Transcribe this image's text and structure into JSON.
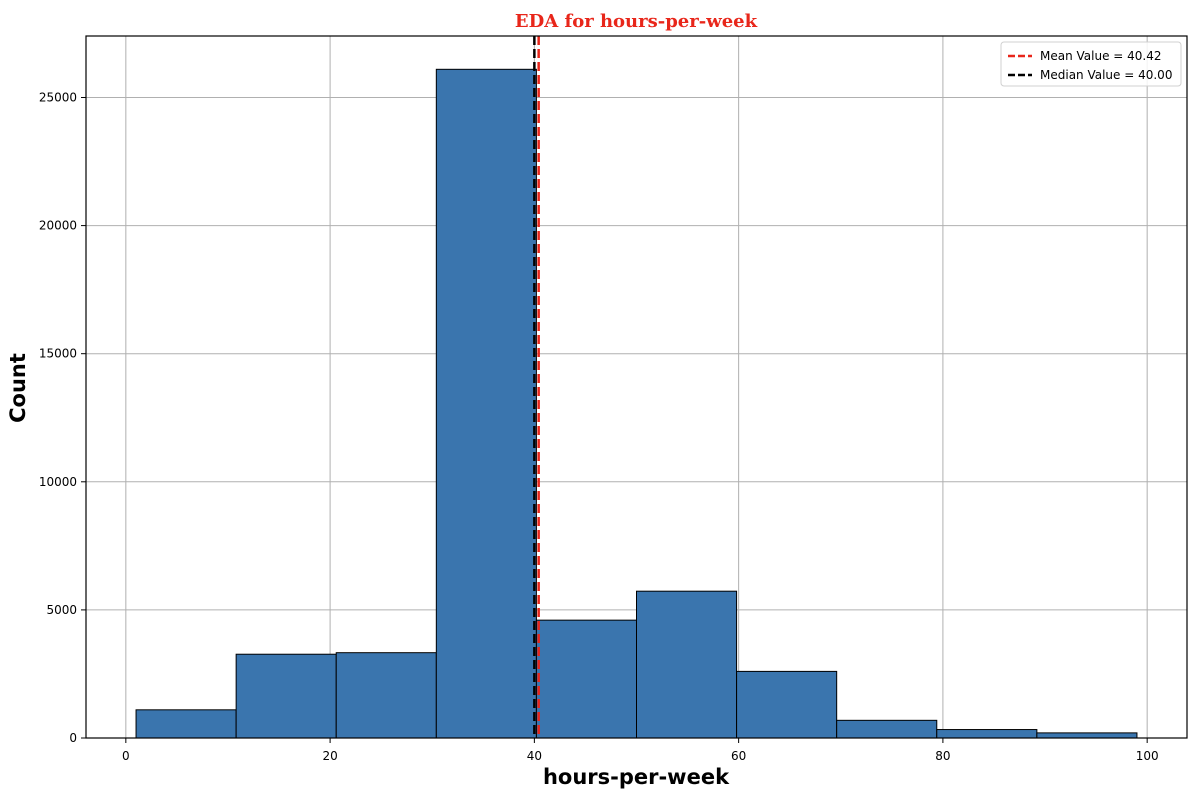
{
  "chart_data": {
    "type": "bar",
    "title": "EDA for hours-per-week",
    "xlabel": "hours-per-week",
    "ylabel": "Count",
    "xlim": [
      -3.9,
      103.9
    ],
    "ylim": [
      0,
      27400
    ],
    "xticks": [
      0,
      20,
      40,
      60,
      80,
      100
    ],
    "yticks": [
      0,
      5000,
      10000,
      15000,
      20000,
      25000
    ],
    "bins": [
      {
        "x0": 1.0,
        "x1": 10.8,
        "count": 1100
      },
      {
        "x0": 10.8,
        "x1": 20.6,
        "count": 3270
      },
      {
        "x0": 20.6,
        "x1": 30.4,
        "count": 3330
      },
      {
        "x0": 30.4,
        "x1": 40.2,
        "count": 26100
      },
      {
        "x0": 40.2,
        "x1": 50.0,
        "count": 4600
      },
      {
        "x0": 50.0,
        "x1": 59.8,
        "count": 5730
      },
      {
        "x0": 59.8,
        "x1": 69.6,
        "count": 2600
      },
      {
        "x0": 69.6,
        "x1": 79.4,
        "count": 690
      },
      {
        "x0": 79.4,
        "x1": 89.2,
        "count": 330
      },
      {
        "x0": 89.2,
        "x1": 99.0,
        "count": 200
      }
    ],
    "lines": [
      {
        "name": "Mean Value = 40.42",
        "x": 40.42,
        "color": "#e8261a",
        "style": "dashed"
      },
      {
        "name": "Median Value = 40.00",
        "x": 40.0,
        "color": "#000000",
        "style": "dashed"
      }
    ],
    "grid": true,
    "legend_position": "top-right",
    "colors": {
      "bar_fill": "#3a75ae",
      "bar_edge": "#000000",
      "title": "#e8261a",
      "grid": "#b0b0b0"
    }
  }
}
